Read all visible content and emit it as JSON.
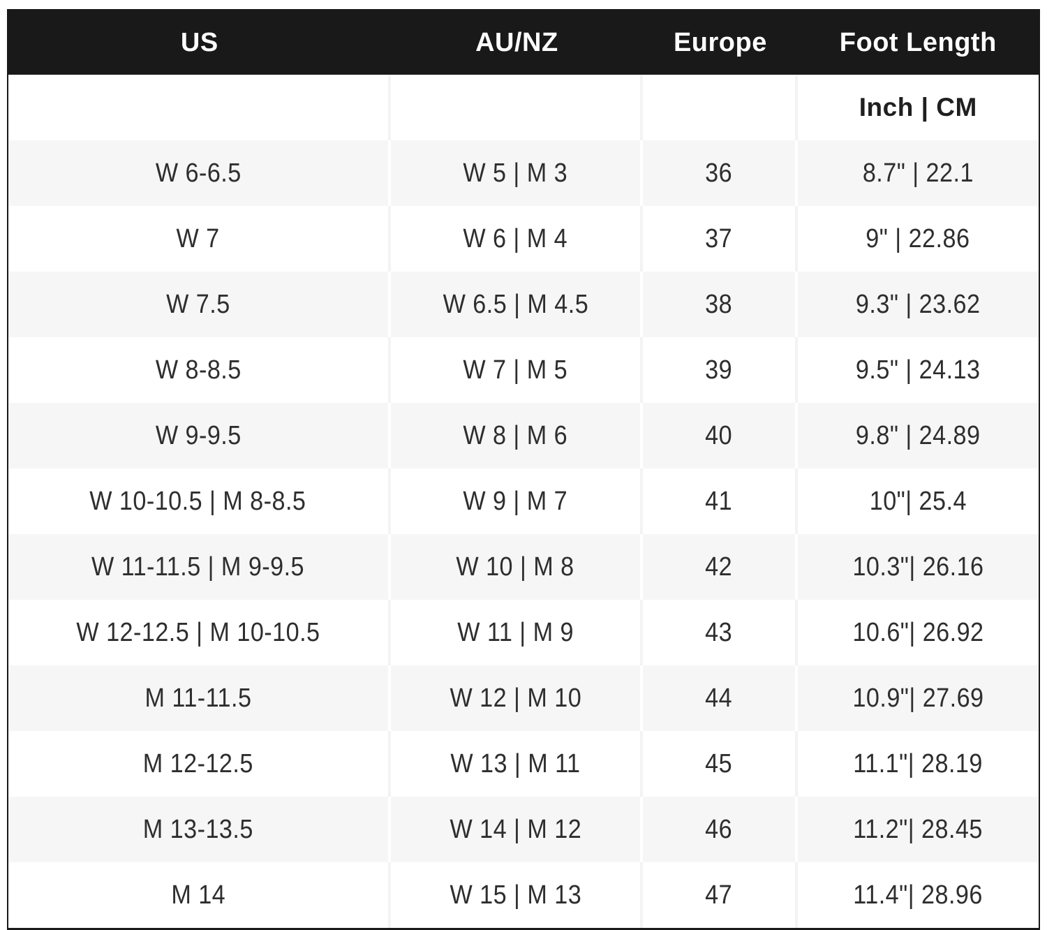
{
  "chart_data": {
    "type": "table",
    "columns": [
      "US",
      "AU/NZ",
      "Europe",
      "Foot Length"
    ],
    "subheader": [
      "",
      "",
      "",
      "Inch | CM"
    ],
    "rows": [
      [
        "W 6-6.5",
        "W 5 | M 3",
        "36",
        "8.7\" | 22.1"
      ],
      [
        "W 7",
        "W 6 | M 4",
        "37",
        "9\" | 22.86"
      ],
      [
        "W 7.5",
        "W 6.5 | M 4.5",
        "38",
        "9.3\" | 23.62"
      ],
      [
        "W 8-8.5",
        "W 7 | M 5",
        "39",
        "9.5\" | 24.13"
      ],
      [
        "W 9-9.5",
        "W 8 | M 6",
        "40",
        "9.8\" | 24.89"
      ],
      [
        "W 10-10.5 | M 8-8.5",
        "W 9 | M 7",
        "41",
        "10\"| 25.4"
      ],
      [
        "W 11-11.5 | M 9-9.5",
        "W 10 | M 8",
        "42",
        "10.3\"| 26.16"
      ],
      [
        "W 12-12.5 | M 10-10.5",
        "W 11 | M 9",
        "43",
        "10.6\"| 26.92"
      ],
      [
        "M 11-11.5",
        "W 12 | M 10",
        "44",
        "10.9\"| 27.69"
      ],
      [
        "M 12-12.5",
        "W 13 | M 11",
        "45",
        "11.1\"| 28.19"
      ],
      [
        "M 13-13.5",
        "W 14 | M 12",
        "46",
        "11.2\"| 28.45"
      ],
      [
        "M 14",
        "W 15 | M 13",
        "47",
        "11.4\"| 28.96"
      ]
    ]
  },
  "colors": {
    "header_bg": "#191919",
    "header_text": "#ffffff",
    "row_bg": "#ffffff",
    "row_alt_bg": "#f6f6f6",
    "body_text": "#2e2e2e",
    "outer_border": "#191919",
    "separator_on_white": "#f3f3f3",
    "separator_on_gray": "#ffffff"
  }
}
